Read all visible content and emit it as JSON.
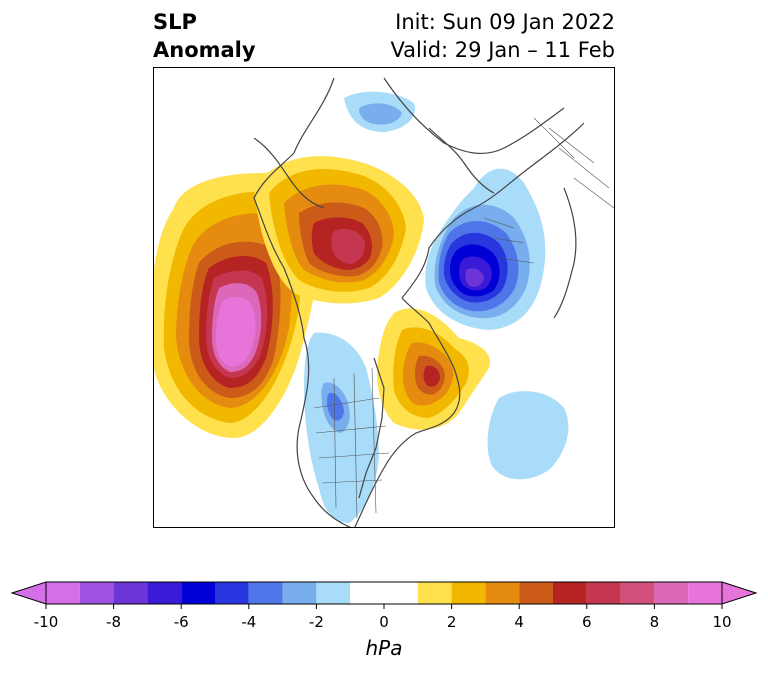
{
  "header": {
    "title_line1": "SLP",
    "title_line2": "Anomaly",
    "init": "Init: Sun 09 Jan 2022",
    "valid": "Valid: 29 Jan – 11 Feb"
  },
  "map": {
    "projection": "polar stereographic (North Hemisphere)",
    "field": "sea level pressure anomaly"
  },
  "colorbar": {
    "unit": "hPa",
    "extend": "both",
    "levels": [
      -10,
      -9,
      -8,
      -7,
      -6,
      -5,
      -4,
      -3,
      -2,
      -1,
      1,
      2,
      3,
      4,
      5,
      6,
      7,
      8,
      9,
      10
    ],
    "colors": [
      "#d56fe8",
      "#9e53e0",
      "#6b35d8",
      "#3a1ad6",
      "#0000d6",
      "#2836e0",
      "#4f76e8",
      "#78aeee",
      "#a9dcf9",
      "#ffffff",
      "#ffe04d",
      "#f2b800",
      "#e58c10",
      "#cc5a18",
      "#b52323",
      "#c53750",
      "#d2507c",
      "#db68b8",
      "#e774d8"
    ],
    "ticks": [
      "-10",
      "-8",
      "-6",
      "-4",
      "-2",
      "0",
      "2",
      "4",
      "6",
      "8",
      "10"
    ]
  }
}
